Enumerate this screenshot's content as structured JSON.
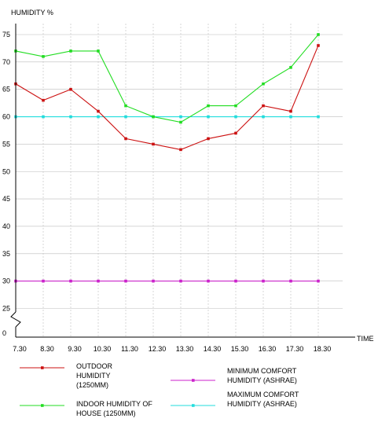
{
  "chart_data": {
    "type": "line",
    "ylabel": "HUMIDITY %",
    "xlabel": "TIME",
    "y_ticks": [
      "75",
      "70",
      "65",
      "60",
      "55",
      "50",
      "45",
      "40",
      "35",
      "30",
      "25",
      "0"
    ],
    "categories": [
      "7.30",
      "8.30",
      "9.30",
      "10.30",
      "11.30",
      "12.30",
      "13.30",
      "14.30",
      "15.30",
      "16.30",
      "17.30",
      "18.30"
    ],
    "ylim": [
      25,
      77
    ],
    "axis_break": "between 25 and 0",
    "grid": true,
    "legend_position": "bottom",
    "series": [
      {
        "name_lines": [
          "OUTDOOR",
          "HUMIDITY",
          "(1250MM)"
        ],
        "color": "#cc1111",
        "values": [
          66,
          63,
          65,
          61,
          56,
          55,
          54,
          56,
          57,
          62,
          61,
          73
        ]
      },
      {
        "name_lines": [
          "INDOOR HUMIDITY OF",
          "HOUSE (1250MM)"
        ],
        "color": "#22dd22",
        "values": [
          72,
          71,
          72,
          72,
          62,
          60,
          59,
          62,
          62,
          66,
          69,
          75
        ]
      },
      {
        "name_lines": [
          "MINIMUM COMFORT",
          "HUMIDITY (ASHRAE)"
        ],
        "color": "#cc22cc",
        "values": [
          30,
          30,
          30,
          30,
          30,
          30,
          30,
          30,
          30,
          30,
          30,
          30
        ]
      },
      {
        "name_lines": [
          "MAXIMUM COMFORT",
          "HUMIDITY (ASHRAE)"
        ],
        "color": "#22dddd",
        "values": [
          60,
          60,
          60,
          60,
          60,
          60,
          60,
          60,
          60,
          60,
          60,
          60
        ]
      }
    ]
  }
}
